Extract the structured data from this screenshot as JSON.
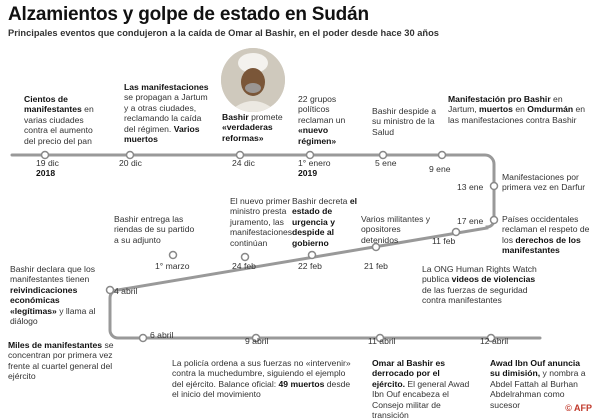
{
  "title": "Alzamientos y golpe de estado en Sudán",
  "subtitle": "Principales eventos que condujeron a la caída de Omar al Bashir, en el poder desde hace 30 años",
  "colors": {
    "line": "#999999",
    "dot_fill": "#ffffff",
    "dot_stroke": "#888888"
  },
  "events": [
    {
      "date": "19 dic",
      "year": "2018",
      "parts": [
        {
          "t": "Cientos de manifestantes",
          "b": true
        },
        {
          "t": " en varias ciudades contra el aumento del precio del pan",
          "b": false
        }
      ]
    },
    {
      "date": "20 dic",
      "year": "",
      "parts": [
        {
          "t": "Las manifestaciones",
          "b": true
        },
        {
          "t": " se propagan a Jartum y a otras ciudades, reclamando la caída del régimen. ",
          "b": false
        },
        {
          "t": "Varios muertos",
          "b": true
        }
      ]
    },
    {
      "date": "24 dic",
      "year": "",
      "parts": [
        {
          "t": "Bashir",
          "b": true
        },
        {
          "t": " promete ",
          "b": false
        },
        {
          "t": "«verdaderas reformas»",
          "b": true
        }
      ]
    },
    {
      "date": "1° enero",
      "year": "2019",
      "parts": [
        {
          "t": "22 grupos políticos reclaman un ",
          "b": false
        },
        {
          "t": "«nuevo régimen»",
          "b": true
        }
      ]
    },
    {
      "date": "5 ene",
      "year": "",
      "parts": [
        {
          "t": "Bashir despide a su ministro de la Salud",
          "b": false
        }
      ]
    },
    {
      "date": "9 ene",
      "year": "",
      "parts": [
        {
          "t": "Manifestación pro Bashir",
          "b": true
        },
        {
          "t": " en Jartum, ",
          "b": false
        },
        {
          "t": "muertos",
          "b": true
        },
        {
          "t": " en ",
          "b": false
        },
        {
          "t": "Omdurmán",
          "b": true
        },
        {
          "t": " en las manifestaciones contra Bashir",
          "b": false
        }
      ]
    },
    {
      "date": "13 ene",
      "year": "",
      "parts": [
        {
          "t": "Manifestaciones por primera vez en Darfur",
          "b": false
        }
      ]
    },
    {
      "date": "17 ene",
      "year": "",
      "parts": [
        {
          "t": "Países occidentales reclaman el respeto de los ",
          "b": false
        },
        {
          "t": "derechos de los manifestantes",
          "b": true
        }
      ]
    },
    {
      "date": "11 feb",
      "year": "",
      "parts": [
        {
          "t": "La ONG Human Rights Watch publica ",
          "b": false
        },
        {
          "t": "videos de violencias",
          "b": true
        },
        {
          "t": " de las fuerzas de seguridad contra manifestantes",
          "b": false
        }
      ]
    },
    {
      "date": "21 feb",
      "year": "",
      "parts": [
        {
          "t": "Varios militantes y opositores detenidos",
          "b": false
        }
      ]
    },
    {
      "date": "22 feb",
      "year": "",
      "parts": [
        {
          "t": "Bashir decreta ",
          "b": false
        },
        {
          "t": "el estado de urgencia y despide al gobierno",
          "b": true
        }
      ]
    },
    {
      "date": "24 feb",
      "year": "",
      "parts": [
        {
          "t": "El nuevo primer ministro presta juramento, las manifestaciones continúan",
          "b": false
        }
      ]
    },
    {
      "date": "1° marzo",
      "year": "",
      "parts": [
        {
          "t": "Bashir entrega las riendas de su  partido a su adjunto",
          "b": false
        }
      ]
    },
    {
      "date": "4 abril",
      "year": "",
      "parts": [
        {
          "t": "Bashir declara que los manifestantes tienen ",
          "b": false
        },
        {
          "t": "reivindicaciones económicas «legítimas»",
          "b": true
        },
        {
          "t": " y llama al diálogo",
          "b": false
        }
      ]
    },
    {
      "date": "6 abril",
      "year": "",
      "parts": [
        {
          "t": "Miles de manifestantes",
          "b": true
        },
        {
          "t": " se concentran por primera vez frente al cuartel general del ejército",
          "b": false
        }
      ]
    },
    {
      "date": "9 abril",
      "year": "",
      "parts": [
        {
          "t": "La policía ordena a sus fuerzas no «intervenir» contra la muchedumbre, siguiendo el ejemplo del ejército. Balance oficial: ",
          "b": false
        },
        {
          "t": "49 muertos",
          "b": true
        },
        {
          "t": " desde el inicio del movimiento",
          "b": false
        }
      ]
    },
    {
      "date": "11 abril",
      "year": "",
      "parts": [
        {
          "t": "Omar al Bashir es derrocado por el ejército.",
          "b": true
        },
        {
          "t": " El general Awad Ibn Ouf encabeza el Consejo militar de transición",
          "b": false
        }
      ]
    },
    {
      "date": "12 abril",
      "year": "",
      "parts": [
        {
          "t": "Awad Ibn Ouf anuncia su dimisión,",
          "b": true
        },
        {
          "t": " y nombra a Abdel Fattah al Burhan Abdelrahman como sucesor",
          "b": false
        }
      ]
    }
  ],
  "credit": {
    "prefix": "© ",
    "brand": "AFP"
  }
}
